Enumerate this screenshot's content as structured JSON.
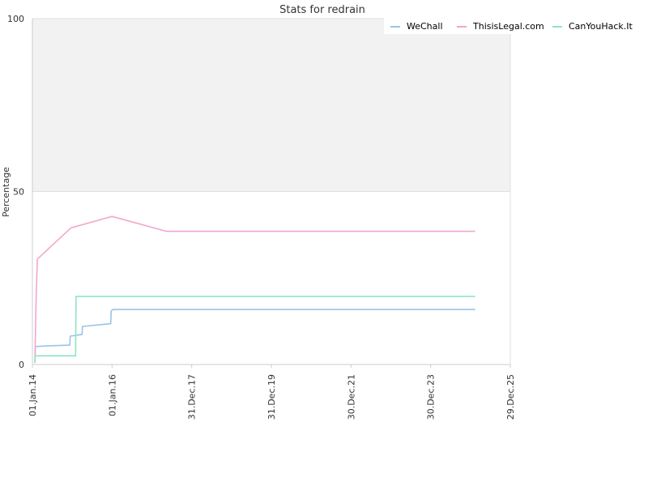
{
  "chart_data": {
    "type": "line",
    "title": "Stats for redrain",
    "ylabel": "Percentage",
    "xlabel": "",
    "ylim": [
      0,
      100
    ],
    "yticks": [
      "0",
      "50",
      "100"
    ],
    "xlim": [
      "2014-01-01",
      "2025-12-29"
    ],
    "xticks": [
      {
        "date": "2014-01-01",
        "label": "01.Jan.14"
      },
      {
        "date": "2016-01-01",
        "label": "01.Jan.16"
      },
      {
        "date": "2017-12-31",
        "label": "31.Dec.17"
      },
      {
        "date": "2019-12-31",
        "label": "31.Dec.19"
      },
      {
        "date": "2021-12-30",
        "label": "30.Dec.21"
      },
      {
        "date": "2023-12-30",
        "label": "30.Dec.23"
      },
      {
        "date": "2025-12-29",
        "label": "29.Dec.25"
      }
    ],
    "grid": true,
    "legend_position": "top-right",
    "upper_band_color": "#f2f2f2",
    "series": [
      {
        "name": "WeChall",
        "color": "#99c4e8",
        "points": [
          [
            "2014-01-24",
            0.5
          ],
          [
            "2014-01-28",
            5.2
          ],
          [
            "2014-06-01",
            5.4
          ],
          [
            "2014-12-10",
            5.6
          ],
          [
            "2014-12-14",
            8.2
          ],
          [
            "2015-04-01",
            8.7
          ],
          [
            "2015-04-05",
            11.0
          ],
          [
            "2015-12-20",
            11.8
          ],
          [
            "2015-12-24",
            15.5
          ],
          [
            "2016-01-10",
            15.9
          ],
          [
            "2025-02-10",
            15.9
          ]
        ]
      },
      {
        "name": "ThisisLegal.com",
        "color": "#f2a6cc",
        "points": [
          [
            "2014-01-24",
            0.5
          ],
          [
            "2014-02-03",
            17.5
          ],
          [
            "2014-02-15",
            30.5
          ],
          [
            "2014-12-20",
            39.5
          ],
          [
            "2016-01-01",
            42.8
          ],
          [
            "2017-05-15",
            38.5
          ],
          [
            "2025-02-10",
            38.5
          ]
        ]
      },
      {
        "name": "CanYouHack.It",
        "color": "#8de6c0",
        "points": [
          [
            "2014-01-24",
            0.5
          ],
          [
            "2014-01-28",
            2.5
          ],
          [
            "2015-02-01",
            2.5
          ],
          [
            "2015-02-05",
            19.7
          ],
          [
            "2025-02-10",
            19.7
          ]
        ]
      }
    ]
  }
}
